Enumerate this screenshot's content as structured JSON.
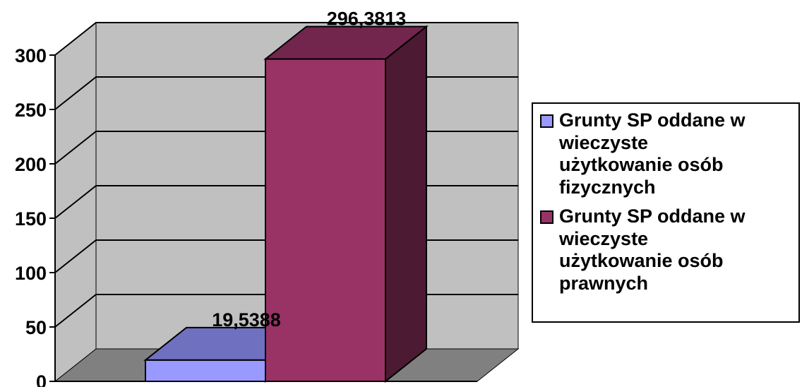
{
  "chart_data": {
    "type": "bar",
    "categories": [
      ""
    ],
    "series": [
      {
        "name": "Grunty SP oddane w wieczyste użytkowanie osób fizycznych",
        "values": [
          19.5388
        ],
        "label": "19,5388",
        "color": "#9999FF",
        "top_color": "#7070C0"
      },
      {
        "name": "Grunty SP oddane w wieczyste użytkowanie osób prawnych",
        "values": [
          296.3813
        ],
        "label": "296,3813",
        "color": "#993366",
        "top_color": "#73264D",
        "side_color": "#4D1A33"
      }
    ],
    "ylim": [
      0,
      300
    ],
    "yticks": [
      "0",
      "50",
      "100",
      "150",
      "200",
      "250",
      "300"
    ],
    "grid": true,
    "three_d": true,
    "legend_position": "right",
    "colors": {
      "wall": "#C0C0C0",
      "floor": "#808080",
      "grid": "#000000"
    }
  }
}
